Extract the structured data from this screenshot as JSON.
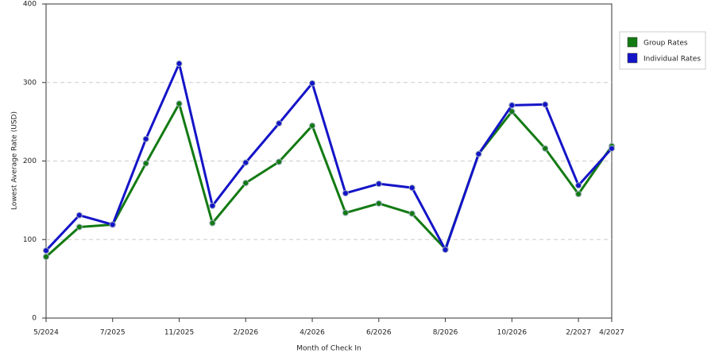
{
  "chart_data": {
    "type": "line",
    "x_label": "Month of Check In",
    "y_label": "Lowest Average Rate (USD)",
    "categories": [
      "5/2024",
      null,
      "7/2025",
      null,
      "11/2025",
      null,
      "2/2026",
      null,
      "4/2026",
      null,
      "6/2026",
      null,
      "8/2026",
      null,
      "10/2026",
      null,
      "2/2027",
      "4/2027"
    ],
    "series": [
      {
        "name": "Group Rates",
        "color": "#137a13",
        "values": [
          78,
          116,
          119,
          197,
          273,
          121,
          172,
          199,
          245,
          134,
          146,
          133,
          88,
          209,
          263,
          216,
          158,
          219
        ]
      },
      {
        "name": "Individual Rates",
        "color": "#1414c8",
        "values": [
          86,
          131,
          119,
          228,
          324,
          143,
          198,
          248,
          299,
          159,
          171,
          166,
          87,
          209,
          271,
          272,
          169,
          216
        ]
      }
    ],
    "ylim": [
      0,
      400
    ],
    "yticks": [
      0,
      100,
      200,
      300,
      400
    ],
    "grid": true,
    "legend": "right"
  }
}
